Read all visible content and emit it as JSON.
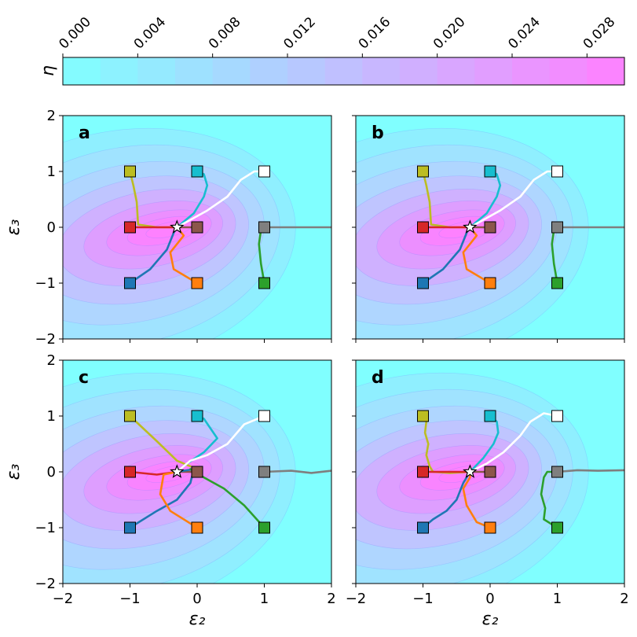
{
  "figure": {
    "colorbar": {
      "label": "η",
      "ticks": [
        "0.000",
        "0.004",
        "0.008",
        "0.012",
        "0.016",
        "0.020",
        "0.024",
        "0.028"
      ],
      "range": [
        0.0,
        0.03
      ],
      "color_low": "#80ffff",
      "color_high": "#ff80ff"
    },
    "x_axis_label": "ε₂",
    "y_axis_label": "ε₃",
    "x_tick_labels": [
      "−2",
      "−1",
      "0",
      "1",
      "2"
    ],
    "y_tick_labels": [
      "−2",
      "−1",
      "0",
      "1",
      "2"
    ]
  },
  "chart_data": [
    {
      "type": "line",
      "panel": "a",
      "xlabel": "ε₂",
      "ylabel": "ε₃",
      "xlim": [
        -2,
        2
      ],
      "ylim": [
        -2,
        2
      ],
      "optimum": {
        "x": -0.3,
        "y": 0.0
      },
      "series": [
        {
          "name": "olive",
          "color": "#bcbd22",
          "start": [
            -1,
            1
          ],
          "points": [
            [
              -1,
              1
            ],
            [
              -0.95,
              0.75
            ],
            [
              -0.9,
              0.45
            ],
            [
              -0.88,
              0.05
            ],
            [
              -0.6,
              0.0
            ],
            [
              -0.3,
              0.0
            ]
          ]
        },
        {
          "name": "cyan",
          "color": "#17becf",
          "start": [
            0,
            1
          ],
          "points": [
            [
              0,
              1
            ],
            [
              0.1,
              0.95
            ],
            [
              0.15,
              0.75
            ],
            [
              0.1,
              0.55
            ],
            [
              -0.05,
              0.25
            ],
            [
              -0.3,
              0.0
            ]
          ]
        },
        {
          "name": "white",
          "color": "#ffffff",
          "start": [
            1,
            1
          ],
          "points": [
            [
              1,
              1
            ],
            [
              0.85,
              1.0
            ],
            [
              0.65,
              0.85
            ],
            [
              0.45,
              0.55
            ],
            [
              0.15,
              0.3
            ],
            [
              -0.3,
              0.0
            ]
          ]
        },
        {
          "name": "red",
          "color": "#d62728",
          "start": [
            -1,
            0
          ],
          "points": [
            [
              -1,
              0
            ],
            [
              -0.7,
              0.0
            ],
            [
              -0.3,
              0.0
            ]
          ]
        },
        {
          "name": "brown",
          "color": "#8c564b",
          "start": [
            0,
            0
          ],
          "points": [
            [
              0,
              0
            ],
            [
              -0.15,
              0.0
            ],
            [
              -0.3,
              0.0
            ]
          ]
        },
        {
          "name": "gray",
          "color": "#7f7f7f",
          "start": [
            1,
            0
          ],
          "points": [
            [
              1,
              0
            ],
            [
              1.5,
              0.0
            ],
            [
              2.0,
              0.0
            ]
          ]
        },
        {
          "name": "blue",
          "color": "#1f77b4",
          "start": [
            -1,
            -1
          ],
          "points": [
            [
              -1,
              -1
            ],
            [
              -0.7,
              -0.75
            ],
            [
              -0.45,
              -0.4
            ],
            [
              -0.35,
              -0.1
            ],
            [
              -0.3,
              0.0
            ]
          ]
        },
        {
          "name": "orange",
          "color": "#ff7f0e",
          "start": [
            0,
            -1
          ],
          "points": [
            [
              0,
              -1
            ],
            [
              -0.35,
              -0.75
            ],
            [
              -0.4,
              -0.45
            ],
            [
              -0.2,
              -0.15
            ],
            [
              -0.3,
              0.0
            ]
          ]
        },
        {
          "name": "green",
          "color": "#2ca02c",
          "start": [
            1,
            -1
          ],
          "points": [
            [
              1,
              -1
            ],
            [
              0.95,
              -0.65
            ],
            [
              0.92,
              -0.3
            ],
            [
              0.95,
              -0.05
            ],
            [
              1.05,
              0.0
            ]
          ]
        }
      ]
    },
    {
      "type": "line",
      "panel": "b",
      "xlabel": "ε₂",
      "ylabel": "ε₃",
      "xlim": [
        -2,
        2
      ],
      "ylim": [
        -2,
        2
      ],
      "optimum": {
        "x": -0.3,
        "y": 0.0
      },
      "series": [
        {
          "name": "olive",
          "color": "#bcbd22",
          "start": [
            -1,
            1
          ],
          "points": [
            [
              -1,
              1
            ],
            [
              -0.95,
              0.75
            ],
            [
              -0.9,
              0.45
            ],
            [
              -0.88,
              0.05
            ],
            [
              -0.6,
              0.0
            ],
            [
              -0.3,
              0.0
            ]
          ]
        },
        {
          "name": "cyan",
          "color": "#17becf",
          "start": [
            0,
            1
          ],
          "points": [
            [
              0,
              1
            ],
            [
              0.1,
              0.95
            ],
            [
              0.15,
              0.75
            ],
            [
              0.1,
              0.55
            ],
            [
              -0.05,
              0.25
            ],
            [
              -0.3,
              0.0
            ]
          ]
        },
        {
          "name": "white",
          "color": "#ffffff",
          "start": [
            1,
            1
          ],
          "points": [
            [
              1,
              1
            ],
            [
              0.85,
              1.0
            ],
            [
              0.65,
              0.85
            ],
            [
              0.45,
              0.55
            ],
            [
              0.15,
              0.3
            ],
            [
              -0.3,
              0.0
            ]
          ]
        },
        {
          "name": "red",
          "color": "#d62728",
          "start": [
            -1,
            0
          ],
          "points": [
            [
              -1,
              0
            ],
            [
              -0.7,
              0.0
            ],
            [
              -0.3,
              0.0
            ]
          ]
        },
        {
          "name": "brown",
          "color": "#8c564b",
          "start": [
            0,
            0
          ],
          "points": [
            [
              0,
              0
            ],
            [
              -0.15,
              0.0
            ],
            [
              -0.3,
              0.0
            ]
          ]
        },
        {
          "name": "gray",
          "color": "#7f7f7f",
          "start": [
            1,
            0
          ],
          "points": [
            [
              1,
              0
            ],
            [
              1.5,
              0.0
            ],
            [
              2.0,
              0.0
            ]
          ]
        },
        {
          "name": "blue",
          "color": "#1f77b4",
          "start": [
            -1,
            -1
          ],
          "points": [
            [
              -1,
              -1
            ],
            [
              -0.7,
              -0.75
            ],
            [
              -0.45,
              -0.4
            ],
            [
              -0.35,
              -0.1
            ],
            [
              -0.3,
              0.0
            ]
          ]
        },
        {
          "name": "orange",
          "color": "#ff7f0e",
          "start": [
            0,
            -1
          ],
          "points": [
            [
              0,
              -1
            ],
            [
              -0.35,
              -0.75
            ],
            [
              -0.4,
              -0.45
            ],
            [
              -0.2,
              -0.15
            ],
            [
              -0.3,
              0.0
            ]
          ]
        },
        {
          "name": "green",
          "color": "#2ca02c",
          "start": [
            1,
            -1
          ],
          "points": [
            [
              1,
              -1
            ],
            [
              0.95,
              -0.65
            ],
            [
              0.92,
              -0.3
            ],
            [
              0.95,
              -0.05
            ],
            [
              1.05,
              0.0
            ]
          ]
        }
      ]
    },
    {
      "type": "line",
      "panel": "c",
      "xlabel": "ε₂",
      "ylabel": "ε₃",
      "xlim": [
        -2,
        2
      ],
      "ylim": [
        -2,
        2
      ],
      "optimum": {
        "x": -0.3,
        "y": 0.0
      },
      "series": [
        {
          "name": "olive",
          "color": "#bcbd22",
          "start": [
            -1,
            1
          ],
          "points": [
            [
              -1,
              1
            ],
            [
              -0.6,
              0.55
            ],
            [
              -0.3,
              0.2
            ],
            [
              -0.1,
              0.1
            ]
          ]
        },
        {
          "name": "cyan",
          "color": "#17becf",
          "start": [
            0,
            1
          ],
          "points": [
            [
              0,
              1
            ],
            [
              0.1,
              0.95
            ],
            [
              0.3,
              0.6
            ],
            [
              0.1,
              0.35
            ],
            [
              -0.15,
              0.15
            ],
            [
              -0.3,
              0.0
            ]
          ]
        },
        {
          "name": "white",
          "color": "#ffffff",
          "start": [
            1,
            1
          ],
          "points": [
            [
              1,
              1
            ],
            [
              0.7,
              0.85
            ],
            [
              0.45,
              0.5
            ],
            [
              0.15,
              0.3
            ],
            [
              -0.1,
              0.2
            ],
            [
              -0.3,
              0.0
            ]
          ]
        },
        {
          "name": "red",
          "color": "#d62728",
          "start": [
            -1,
            0
          ],
          "points": [
            [
              -1,
              0
            ],
            [
              -0.6,
              -0.05
            ],
            [
              -0.3,
              0.0
            ]
          ]
        },
        {
          "name": "brown",
          "color": "#8c564b",
          "start": [
            0,
            0
          ],
          "points": [
            [
              0,
              0
            ],
            [
              -0.15,
              0.0
            ],
            [
              -0.3,
              0.0
            ]
          ]
        },
        {
          "name": "gray",
          "color": "#7f7f7f",
          "start": [
            1,
            0
          ],
          "points": [
            [
              1,
              0
            ],
            [
              1.4,
              0.02
            ],
            [
              1.7,
              -0.02
            ],
            [
              2.0,
              0.02
            ]
          ]
        },
        {
          "name": "blue",
          "color": "#1f77b4",
          "start": [
            -1,
            -1
          ],
          "points": [
            [
              -1,
              -1
            ],
            [
              -0.6,
              -0.7
            ],
            [
              -0.3,
              -0.5
            ],
            [
              -0.1,
              -0.2
            ],
            [
              -0.05,
              0.05
            ],
            [
              -0.3,
              0.0
            ]
          ]
        },
        {
          "name": "orange",
          "color": "#ff7f0e",
          "start": [
            0,
            -1
          ],
          "points": [
            [
              0,
              -1
            ],
            [
              -0.4,
              -0.7
            ],
            [
              -0.55,
              -0.4
            ],
            [
              -0.5,
              -0.05
            ],
            [
              -0.3,
              0.0
            ]
          ]
        },
        {
          "name": "green",
          "color": "#2ca02c",
          "start": [
            1,
            -1
          ],
          "points": [
            [
              1,
              -1
            ],
            [
              0.7,
              -0.6
            ],
            [
              0.4,
              -0.3
            ],
            [
              0.1,
              -0.1
            ],
            [
              -0.1,
              0.05
            ]
          ]
        }
      ]
    },
    {
      "type": "line",
      "panel": "d",
      "xlabel": "ε₂",
      "ylabel": "ε₃",
      "xlim": [
        -2,
        2
      ],
      "ylim": [
        -2,
        2
      ],
      "optimum": {
        "x": -0.3,
        "y": 0.0
      },
      "series": [
        {
          "name": "olive",
          "color": "#bcbd22",
          "start": [
            -1,
            1
          ],
          "points": [
            [
              -1,
              1
            ],
            [
              -0.95,
              0.9
            ],
            [
              -0.97,
              0.7
            ],
            [
              -0.92,
              0.5
            ],
            [
              -0.95,
              0.3
            ],
            [
              -0.9,
              0.1
            ],
            [
              -0.85,
              0.0
            ],
            [
              -0.6,
              -0.02
            ],
            [
              -0.3,
              0.0
            ]
          ]
        },
        {
          "name": "cyan",
          "color": "#17becf",
          "start": [
            0,
            1
          ],
          "points": [
            [
              0,
              1
            ],
            [
              0.1,
              0.9
            ],
            [
              0.12,
              0.7
            ],
            [
              0.05,
              0.5
            ],
            [
              -0.1,
              0.25
            ],
            [
              -0.3,
              0.0
            ]
          ]
        },
        {
          "name": "white",
          "color": "#ffffff",
          "start": [
            1,
            1
          ],
          "points": [
            [
              1,
              1
            ],
            [
              0.8,
              1.05
            ],
            [
              0.6,
              0.9
            ],
            [
              0.45,
              0.65
            ],
            [
              0.2,
              0.35
            ],
            [
              -0.05,
              0.15
            ],
            [
              -0.3,
              0.0
            ]
          ]
        },
        {
          "name": "red",
          "color": "#d62728",
          "start": [
            -1,
            0
          ],
          "points": [
            [
              -1,
              0
            ],
            [
              -0.7,
              0.0
            ],
            [
              -0.3,
              0.0
            ]
          ]
        },
        {
          "name": "brown",
          "color": "#8c564b",
          "start": [
            0,
            0
          ],
          "points": [
            [
              0,
              0
            ],
            [
              -0.15,
              0.0
            ],
            [
              -0.3,
              0.0
            ]
          ]
        },
        {
          "name": "gray",
          "color": "#7f7f7f",
          "start": [
            1,
            0
          ],
          "points": [
            [
              1,
              0
            ],
            [
              1.3,
              0.03
            ],
            [
              1.6,
              0.02
            ],
            [
              2.0,
              0.03
            ]
          ]
        },
        {
          "name": "blue",
          "color": "#1f77b4",
          "start": [
            -1,
            -1
          ],
          "points": [
            [
              -1,
              -1
            ],
            [
              -0.85,
              -0.85
            ],
            [
              -0.65,
              -0.7
            ],
            [
              -0.5,
              -0.5
            ],
            [
              -0.4,
              -0.2
            ],
            [
              -0.3,
              0.0
            ]
          ]
        },
        {
          "name": "orange",
          "color": "#ff7f0e",
          "start": [
            0,
            -1
          ],
          "points": [
            [
              0,
              -1
            ],
            [
              -0.2,
              -0.9
            ],
            [
              -0.35,
              -0.6
            ],
            [
              -0.4,
              -0.3
            ],
            [
              -0.3,
              -0.1
            ],
            [
              -0.3,
              0.0
            ]
          ]
        },
        {
          "name": "green",
          "color": "#2ca02c",
          "start": [
            1,
            -1
          ],
          "points": [
            [
              1,
              -1
            ],
            [
              0.8,
              -0.85
            ],
            [
              0.82,
              -0.65
            ],
            [
              0.76,
              -0.4
            ],
            [
              0.8,
              -0.1
            ],
            [
              0.85,
              0.0
            ],
            [
              1.0,
              0.0
            ]
          ]
        }
      ]
    }
  ]
}
